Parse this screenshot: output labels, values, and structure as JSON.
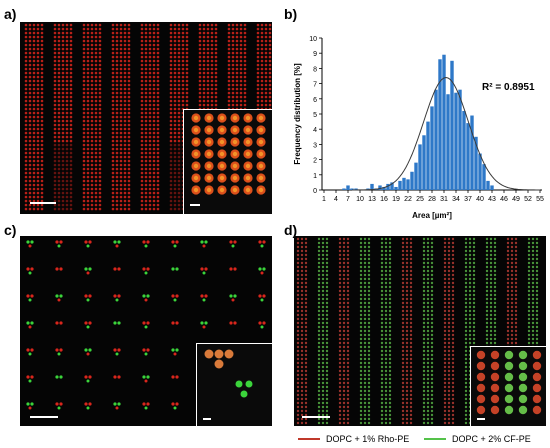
{
  "panels": {
    "a": {
      "label": "a)"
    },
    "b": {
      "label": "b)"
    },
    "c": {
      "label": "c)"
    },
    "d": {
      "label": "d)"
    }
  },
  "colors": {
    "red": "#d9261c",
    "green": "#3bd43b",
    "bar": "#2e78c8",
    "fit": "#3a3a3a"
  },
  "legend_d": {
    "red_label": "DOPC + 1% Rho-PE",
    "green_label": "DOPC + 2% CF-PE",
    "red_color": "#c0392b",
    "green_color": "#55c24a"
  },
  "chart_data": {
    "type": "bar",
    "xlabel": "Area [µm²]",
    "ylabel": "Frequency distribution [%]",
    "ylim": [
      0,
      10
    ],
    "yticks": [
      0,
      1,
      2,
      3,
      4,
      5,
      6,
      7,
      8,
      9,
      10
    ],
    "xticks": [
      1,
      4,
      7,
      10,
      13,
      16,
      19,
      22,
      25,
      28,
      31,
      34,
      37,
      40,
      43,
      46,
      49,
      52,
      55
    ],
    "xlim": [
      0.5,
      55.5
    ],
    "annotation": "R² = 0.8951",
    "x": [
      5,
      6,
      7,
      8,
      9,
      10,
      11,
      12,
      13,
      14,
      15,
      16,
      17,
      18,
      19,
      20,
      21,
      22,
      23,
      24,
      25,
      26,
      27,
      28,
      29,
      30,
      31,
      32,
      33,
      34,
      35,
      36,
      37,
      38,
      39,
      40,
      41,
      42,
      43
    ],
    "values": [
      0,
      0.1,
      0.3,
      0.1,
      0.1,
      0,
      0,
      0.1,
      0.4,
      0.1,
      0.3,
      0.2,
      0.4,
      0.5,
      0.2,
      0.6,
      0.8,
      0.7,
      1.2,
      1.8,
      3.0,
      3.6,
      4.5,
      5.5,
      6.6,
      8.6,
      8.9,
      6.3,
      8.5,
      6.4,
      6.6,
      5.2,
      4.4,
      4.9,
      3.5,
      2.4,
      1.7,
      0.6,
      0.3
    ],
    "fit_curve": {
      "type": "gaussian",
      "mean": 31.5,
      "sd": 5.6,
      "peak": 7.4
    }
  }
}
